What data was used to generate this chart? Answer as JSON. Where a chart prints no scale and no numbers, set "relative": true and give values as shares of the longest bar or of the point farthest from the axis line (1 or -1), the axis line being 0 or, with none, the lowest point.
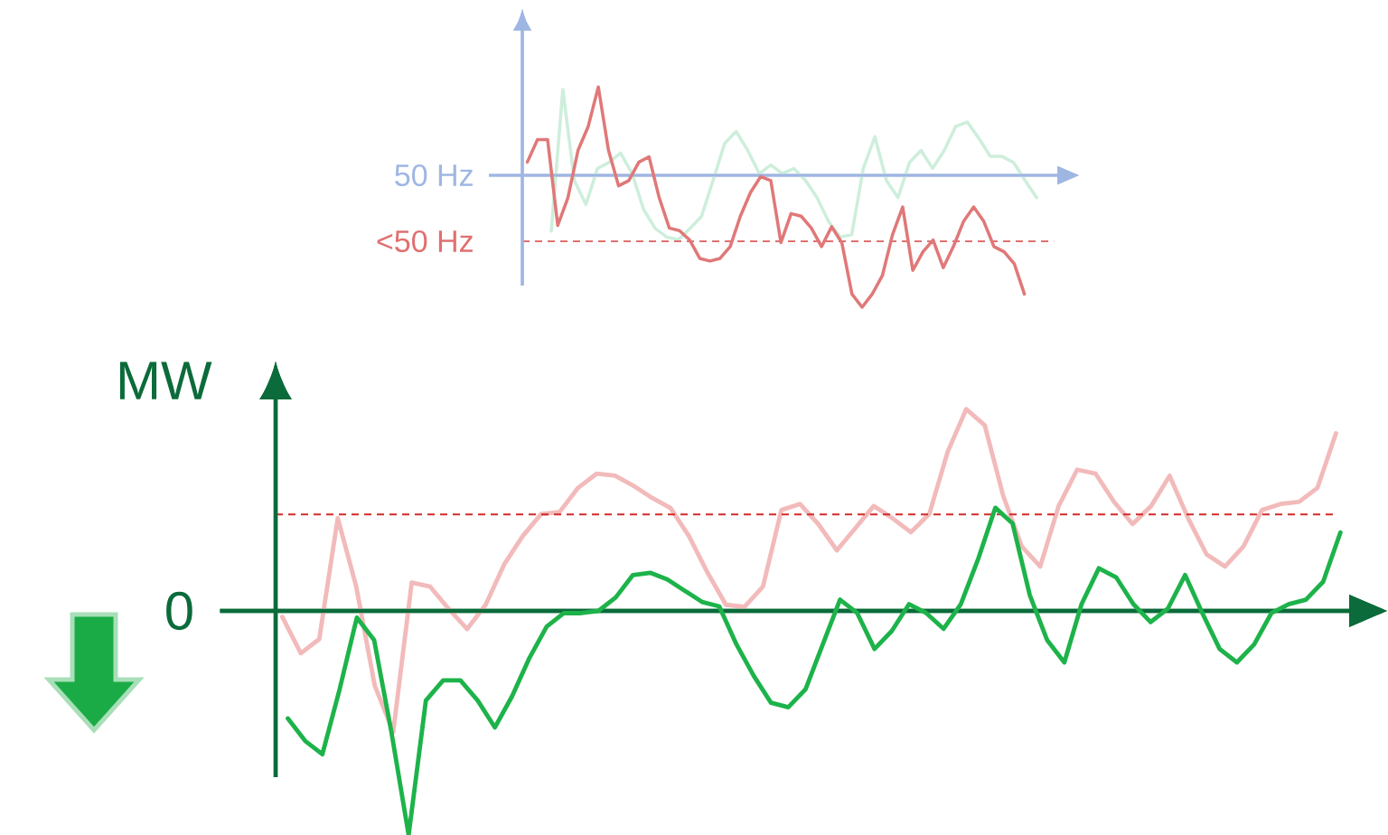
{
  "chart_data": [
    {
      "type": "line",
      "relative": true,
      "categories": [
        null,
        null,
        null,
        null,
        null,
        null,
        null,
        null,
        null,
        null,
        null,
        null,
        null,
        null,
        null,
        null,
        null,
        null,
        null,
        null,
        null,
        null,
        null,
        null,
        null,
        null,
        null,
        null,
        null,
        null,
        null,
        null,
        null,
        null,
        null,
        null,
        null,
        null,
        null,
        null,
        null,
        null,
        null
      ],
      "ref_lines": [
        {
          "axis": "y",
          "value": 0,
          "color": "#9fb6e3"
        }
      ],
      "series": [
        {
          "color": "#cdeedb",
          "values": [
            -0.65,
            1,
            -0.06,
            -0.34,
            0.08,
            0.15,
            0.26,
            0.02,
            -0.4,
            -0.62,
            -0.72,
            -0.75,
            -0.62,
            -0.48,
            -0.06,
            0.37,
            0.51,
            0.29,
            0.02,
            0.12,
            0.02,
            0.08,
            -0.06,
            -0.26,
            -0.54,
            -0.72,
            -0.69,
            0.08,
            0.45,
            -0.06,
            -0.26,
            0.15,
            0.29,
            0.08,
            0.29,
            0.57,
            0.62,
            0.43,
            0.22,
            0.22,
            0.15,
            -0.06,
            -0.26
          ]
        }
      ]
    },
    {
      "type": "line",
      "relative": true,
      "categories": [
        null,
        null,
        null,
        null,
        null,
        null,
        null,
        null,
        null,
        null,
        null,
        null,
        null,
        null,
        null,
        null,
        null,
        null,
        null,
        null,
        null,
        null,
        null,
        null,
        null,
        null,
        null,
        null,
        null,
        null,
        null,
        null,
        null,
        null,
        null,
        null,
        null,
        null,
        null,
        null,
        null,
        null,
        null,
        null,
        null,
        null,
        null,
        null,
        null,
        null
      ],
      "ref_lines": [
        {
          "axis": "y",
          "value": 0,
          "label": "50 Hz",
          "color": "#9fb6e3"
        },
        {
          "axis": "y",
          "value": -0.5,
          "label": "<50 Hz",
          "color": "#e07070",
          "line_style": "dashed"
        }
      ],
      "series": [
        {
          "color": "#e07878",
          "values": [
            0.1,
            0.27,
            0.27,
            -0.38,
            -0.17,
            0.19,
            0.37,
            0.67,
            0.19,
            -0.08,
            -0.04,
            0.1,
            0.14,
            -0.17,
            -0.4,
            -0.42,
            -0.49,
            -0.63,
            -0.65,
            -0.63,
            -0.54,
            -0.31,
            -0.13,
            -0.01,
            -0.04,
            -0.51,
            -0.29,
            -0.31,
            -0.4,
            -0.54,
            -0.39,
            -0.51,
            -0.9,
            -1.0,
            -0.9,
            -0.76,
            -0.45,
            -0.24,
            -0.72,
            -0.58,
            -0.49,
            -0.7,
            -0.54,
            -0.35,
            -0.24,
            -0.35,
            -0.54,
            -0.58,
            -0.67,
            -0.9
          ]
        }
      ]
    },
    {
      "type": "line",
      "relative": true,
      "categories": [
        null,
        null,
        null,
        null,
        null,
        null,
        null,
        null,
        null,
        null,
        null,
        null,
        null,
        null,
        null,
        null,
        null,
        null,
        null,
        null,
        null,
        null,
        null,
        null,
        null,
        null,
        null,
        null,
        null,
        null,
        null,
        null,
        null,
        null,
        null,
        null,
        null,
        null,
        null,
        null,
        null,
        null,
        null,
        null,
        null,
        null,
        null,
        null,
        null,
        null,
        null,
        null,
        null,
        null,
        null,
        null,
        null,
        null
      ],
      "ref_lines": [
        {
          "axis": "y",
          "value": 0,
          "color": "#0b6b3a"
        }
      ],
      "series": [
        {
          "color": "#f2baba",
          "values": [
            -0.03,
            -0.21,
            -0.14,
            0.46,
            0.12,
            -0.37,
            -0.6,
            0.14,
            0.12,
            0.01,
            -0.09,
            0.03,
            0.23,
            0.37,
            0.48,
            0.49,
            0.61,
            0.68,
            0.67,
            0.62,
            0.56,
            0.51,
            0.37,
            0.19,
            0.03,
            0.02,
            0.12,
            0.5,
            0.53,
            0.43,
            0.3,
            0.41,
            0.52,
            0.46,
            0.39,
            0.48,
            0.79,
            1,
            0.92,
            0.57,
            0.32,
            0.22,
            0.52,
            0.7,
            0.68,
            0.54,
            0.43,
            0.52,
            0.67,
            0.46,
            0.28,
            0.22,
            0.32,
            0.5,
            0.53,
            0.54,
            0.61,
            0.88
          ]
        }
      ]
    },
    {
      "type": "line",
      "relative": true,
      "ylabel": "MW",
      "categories": [
        null,
        null,
        null,
        null,
        null,
        null,
        null,
        null,
        null,
        null,
        null,
        null,
        null,
        null,
        null,
        null,
        null,
        null,
        null,
        null,
        null,
        null,
        null,
        null,
        null,
        null,
        null,
        null,
        null,
        null,
        null,
        null,
        null,
        null,
        null,
        null,
        null,
        null,
        null,
        null,
        null,
        null,
        null,
        null,
        null,
        null,
        null,
        null,
        null,
        null,
        null,
        null,
        null,
        null,
        null,
        null,
        null,
        null,
        null,
        null,
        null,
        null
      ],
      "ref_lines": [
        {
          "axis": "y",
          "value": 0,
          "label": "0",
          "color": "#0b6b3a"
        },
        {
          "axis": "y",
          "value": 0.43,
          "color": "#d42a2a",
          "line_style": "dashed"
        }
      ],
      "series": [
        {
          "color": "#1db34a",
          "values": [
            -0.48,
            -0.58,
            -0.64,
            -0.35,
            -0.03,
            -0.13,
            -0.54,
            -1.0,
            -0.4,
            -0.31,
            -0.31,
            -0.4,
            -0.52,
            -0.38,
            -0.21,
            -0.07,
            -0.01,
            -0.01,
            0,
            0.06,
            0.16,
            0.17,
            0.14,
            0.09,
            0.04,
            0.02,
            -0.15,
            -0.29,
            -0.41,
            -0.43,
            -0.35,
            -0.15,
            0.05,
            -0.01,
            -0.17,
            -0.09,
            0.03,
            -0.01,
            -0.08,
            0.03,
            0.23,
            0.46,
            0.39,
            0.07,
            -0.13,
            -0.23,
            0.03,
            0.19,
            0.15,
            0.03,
            -0.05,
            0.01,
            0.16,
            -0.01,
            -0.17,
            -0.23,
            -0.15,
            -0.01,
            0.03,
            0.05,
            0.13,
            0.35
          ]
        }
      ]
    }
  ]
}
